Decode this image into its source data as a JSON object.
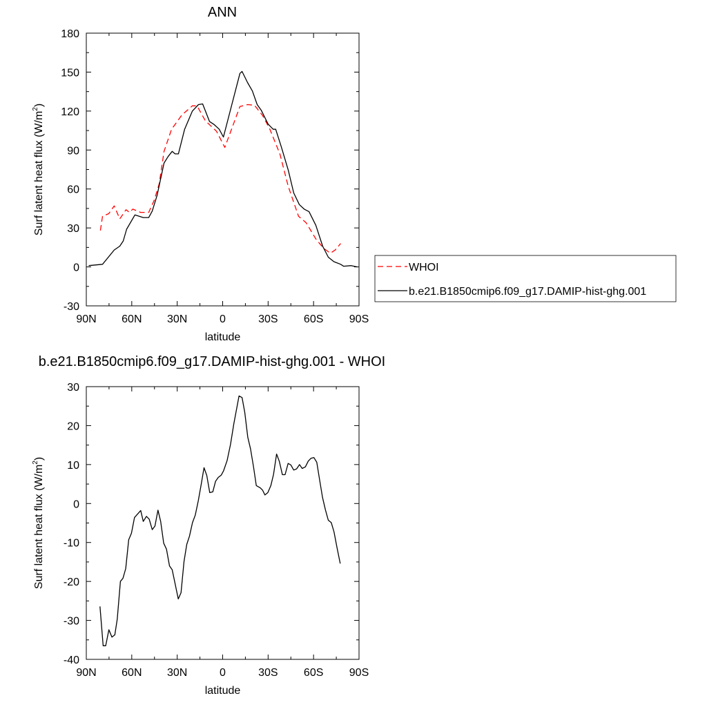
{
  "chart_data": [
    {
      "type": "line",
      "title": "ANN",
      "xlabel": "latitude",
      "ylabel": "Surf latent heat flux (W/m",
      "ylabel_sup": "2",
      "ylabel_close": ")",
      "xlim": [
        90,
        -90
      ],
      "ylim": [
        -30,
        180
      ],
      "xticks": [
        90,
        60,
        30,
        0,
        -30,
        -60,
        -90
      ],
      "xtick_labels": [
        "90N",
        "60N",
        "30N",
        "0",
        "30S",
        "60S",
        "90S"
      ],
      "yticks": [
        -30,
        0,
        30,
        60,
        90,
        120,
        150,
        180
      ],
      "ytick_labels": [
        "-30",
        "0",
        "30",
        "60",
        "90",
        "120",
        "150",
        "180"
      ],
      "grid": false,
      "legend_placement": "right-outside",
      "series": [
        {
          "name": "WHOI",
          "color": "#ff0000",
          "dash": "dashed",
          "x": [
            80.7,
            79.3,
            75.2,
            71.6,
            67.9,
            63.8,
            61.5,
            59.3,
            54.2,
            48.8,
            45.1,
            41.9,
            38.7,
            33.7,
            26.9,
            20,
            16.9,
            11.4,
            4.1,
            -1.4,
            -11.4,
            -16.4,
            -21,
            -26.4,
            -31,
            -37.8,
            -43.3,
            -50.1,
            -55.1,
            -61.5,
            -66.5,
            -71.1,
            -74.3,
            -77.9
          ],
          "y": [
            28,
            39,
            41,
            47,
            37,
            44,
            42,
            44.5,
            42,
            42,
            51.5,
            64,
            89,
            106,
            117,
            124,
            124,
            112.5,
            104.5,
            92,
            123.5,
            125,
            124.5,
            116.5,
            106.5,
            87,
            62,
            39,
            34,
            21.5,
            14.5,
            10.5,
            13,
            18
          ]
        },
        {
          "name": "b.e21.B1850cmip6.f09_g17.DAMIP-hist-ghg.001",
          "color": "#000000",
          "dash": "solid",
          "x": [
            88.4,
            79.3,
            71.6,
            67.9,
            65.6,
            63.4,
            57.9,
            52.4,
            48.8,
            46.5,
            43.3,
            38.7,
            36,
            33.3,
            31.4,
            29.2,
            25.1,
            20,
            16,
            13.2,
            8.7,
            5.5,
            2.3,
            -0.5,
            -11.4,
            -12.8,
            -16.4,
            -19.6,
            -22.8,
            -25.5,
            -30,
            -33.3,
            -35,
            -38.7,
            -43.3,
            -46.9,
            -50.6,
            -53.8,
            -57,
            -61.5,
            -66,
            -69.7,
            -73.4,
            -77.9,
            -79.8,
            -84.8,
            -88.9
          ],
          "y": [
            1,
            2,
            13,
            16,
            20,
            29,
            40,
            38,
            38,
            43,
            55,
            80,
            85,
            89,
            87,
            87,
            106,
            120,
            125,
            125.5,
            112,
            109.5,
            106,
            100,
            149,
            150.5,
            142,
            135.5,
            125,
            120.5,
            110,
            106,
            106,
            92.5,
            74.5,
            57,
            48,
            44.5,
            42.5,
            32,
            16,
            7.5,
            4,
            2,
            0.5,
            1,
            0
          ]
        }
      ]
    },
    {
      "type": "line",
      "title": "b.e21.B1850cmip6.f09_g17.DAMIP-hist-ghg.001 - WHOI",
      "xlabel": "latitude",
      "ylabel": "Surf latent heat flux (W/m",
      "ylabel_sup": "2",
      "ylabel_close": ")",
      "xlim": [
        90,
        -90
      ],
      "ylim": [
        -40,
        30
      ],
      "xticks": [
        90,
        60,
        30,
        0,
        -30,
        -60,
        -90
      ],
      "xtick_labels": [
        "90N",
        "60N",
        "30N",
        "0",
        "30S",
        "60S",
        "90S"
      ],
      "yticks": [
        -40,
        -30,
        -20,
        -10,
        0,
        10,
        20,
        30
      ],
      "ytick_labels": [
        "-40",
        "-30",
        "-20",
        "-10",
        "0",
        "10",
        "20",
        "30"
      ],
      "grid": false,
      "series": [
        {
          "color": "#000000",
          "dash": "solid",
          "x": [
            81,
            78.9,
            77.2,
            75.1,
            73.1,
            71.2,
            69.6,
            67.5,
            65.8,
            64,
            62,
            60.2,
            58.2,
            54.1,
            52.4,
            50.3,
            48.5,
            46.5,
            44.7,
            42.7,
            40.9,
            38.9,
            37.1,
            35.1,
            33.3,
            29.3,
            27.5,
            25.5,
            23.7,
            21.9,
            19.9,
            18.1,
            16.1,
            14.1,
            12.3,
            10.5,
            8.5,
            6.5,
            4.7,
            2.9,
            0.9,
            -0.6,
            -2.9,
            -5.2,
            -7.4,
            -10.8,
            -12.8,
            -14.6,
            -16.6,
            -18.4,
            -20.4,
            -22.2,
            -24.9,
            -26.4,
            -27.9,
            -29.8,
            -31.8,
            -33.6,
            -35.6,
            -37.4,
            -39.4,
            -41.2,
            -43.2,
            -45,
            -46.9,
            -48.8,
            -50.7,
            -52.5,
            -54.6,
            -56.5,
            -58.3,
            -60.2,
            -62.1,
            -63.9,
            -65.9,
            -67.8,
            -69.7,
            -71.7,
            -73.5,
            -75.5,
            -77.6
          ],
          "y": [
            -26.4,
            -36.5,
            -36.5,
            -32.4,
            -34.3,
            -33.7,
            -29.7,
            -20,
            -19.2,
            -16.7,
            -9.3,
            -7.6,
            -3.6,
            -1.8,
            -4.6,
            -3.3,
            -4,
            -6.7,
            -5.8,
            -1.7,
            -4.6,
            -10.2,
            -11.7,
            -16,
            -17,
            -24.5,
            -22.9,
            -14.9,
            -10.5,
            -8.4,
            -4.9,
            -3,
            0.7,
            5.1,
            9.2,
            7.2,
            2.8,
            3,
            5.7,
            6.7,
            7.3,
            8.4,
            11,
            15.2,
            20.5,
            27.6,
            27.2,
            23.4,
            17,
            14,
            9.3,
            4.6,
            4,
            3.4,
            2.2,
            2.8,
            4.6,
            7.5,
            12.7,
            10.8,
            7.4,
            7.4,
            10.3,
            9.9,
            8.6,
            8.9,
            10,
            9,
            9.4,
            10.9,
            11.6,
            11.8,
            10.6,
            6.3,
            1.6,
            -1.6,
            -4.3,
            -4.9,
            -7.3,
            -11.4,
            -15.4
          ]
        }
      ]
    }
  ]
}
